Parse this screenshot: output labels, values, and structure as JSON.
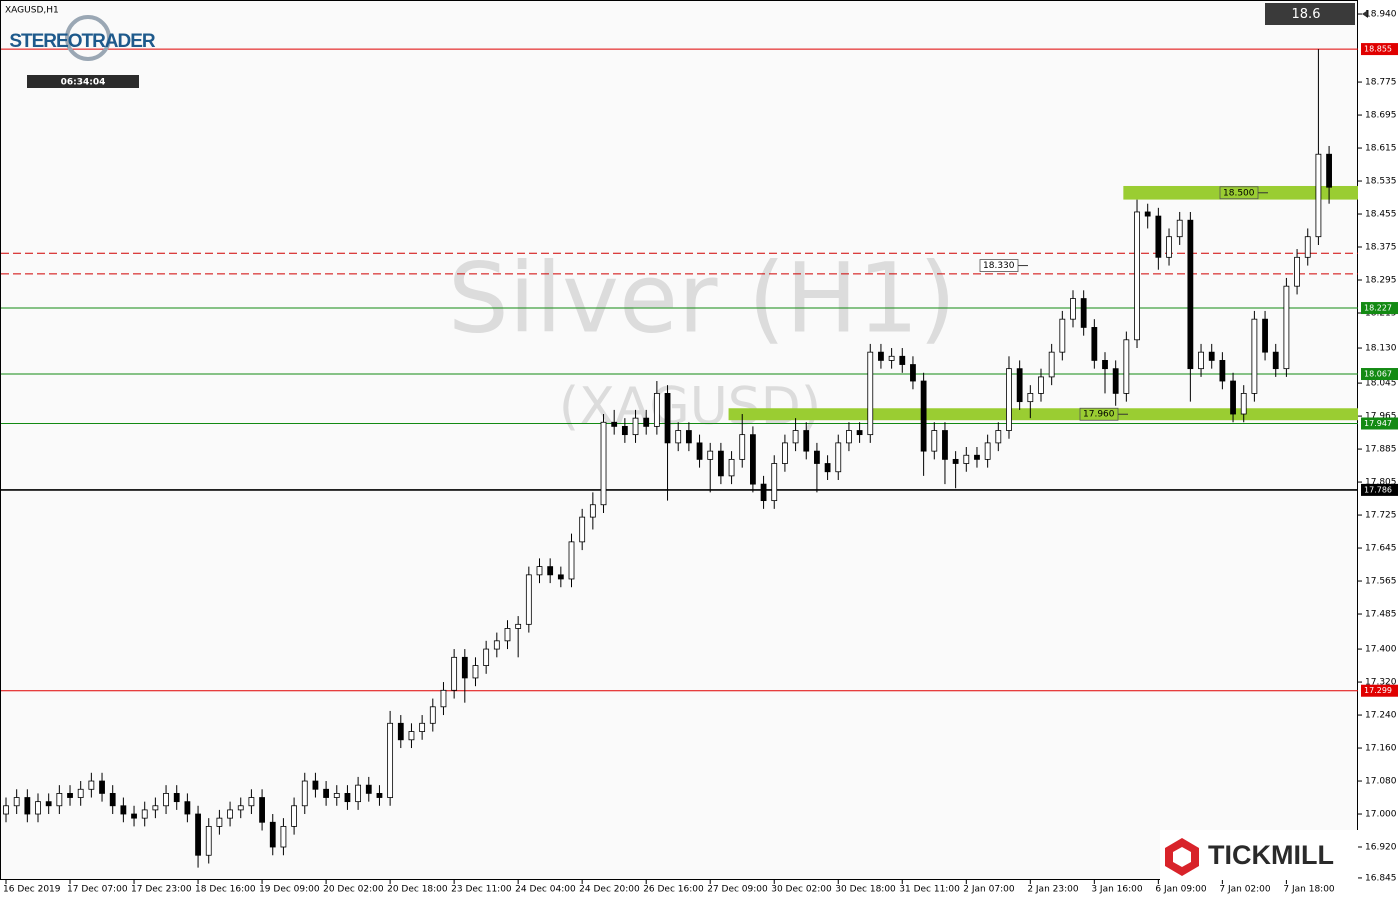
{
  "chart_data": {
    "type": "candlestick",
    "symbol": "XAGUSD,H1",
    "watermark": [
      "Silver (H1)",
      "(XAGUSD)"
    ],
    "brand": "STEREOTRADER",
    "timer": "06:34:04",
    "broker": "TICKMILL",
    "current_price": 18.6,
    "grid": false,
    "up_color": "#ffffff",
    "down_color": "#000000",
    "categories": [
      "16 Dec 2019",
      null,
      null,
      null,
      null,
      null,
      "17 Dec 07:00",
      null,
      null,
      null,
      null,
      null,
      "17 Dec 23:00",
      null,
      null,
      null,
      null,
      null,
      "18 Dec 16:00",
      null,
      null,
      null,
      null,
      null,
      "19 Dec 09:00",
      null,
      null,
      null,
      null,
      null,
      "20 Dec 02:00",
      null,
      null,
      null,
      null,
      null,
      "20 Dec 18:00",
      null,
      null,
      null,
      null,
      null,
      "23 Dec 11:00",
      null,
      null,
      null,
      null,
      null,
      "24 Dec 04:00",
      null,
      null,
      null,
      null,
      null,
      "24 Dec 20:00",
      null,
      null,
      null,
      null,
      null,
      "26 Dec 16:00",
      null,
      null,
      null,
      null,
      null,
      "27 Dec 09:00",
      null,
      null,
      null,
      null,
      null,
      "30 Dec 02:00",
      null,
      null,
      null,
      null,
      null,
      "30 Dec 18:00",
      null,
      null,
      null,
      null,
      null,
      "31 Dec 11:00",
      null,
      null,
      null,
      null,
      null,
      "2 Jan 07:00",
      null,
      null,
      null,
      null,
      null,
      "2 Jan 23:00",
      null,
      null,
      null,
      null,
      null,
      "3 Jan 16:00",
      null,
      null,
      null,
      null,
      null,
      "6 Jan 09:00",
      null,
      null,
      null,
      null,
      null,
      "7 Jan 02:00",
      null,
      null,
      null,
      null,
      null,
      "7 Jan 18:00",
      null,
      null,
      null,
      null
    ],
    "open": [
      17.0,
      17.02,
      17.04,
      17.0,
      17.03,
      17.02,
      17.05,
      17.04,
      17.06,
      17.08,
      17.05,
      17.02,
      17.0,
      16.99,
      17.01,
      17.02,
      17.05,
      17.03,
      17.0,
      16.9,
      16.97,
      16.99,
      17.01,
      17.02,
      17.04,
      16.98,
      16.92,
      16.97,
      17.02,
      17.08,
      17.06,
      17.04,
      17.05,
      17.03,
      17.07,
      17.05,
      17.04,
      17.22,
      17.18,
      17.2,
      17.22,
      17.26,
      17.3,
      17.38,
      17.33,
      17.36,
      17.4,
      17.42,
      17.45,
      17.46,
      17.58,
      17.6,
      17.58,
      17.57,
      17.66,
      17.72,
      17.75,
      17.95,
      17.94,
      17.92,
      17.96,
      17.94,
      18.02,
      17.9,
      17.93,
      17.9,
      17.86,
      17.88,
      17.82,
      17.86,
      17.92,
      17.8,
      17.76,
      17.85,
      17.9,
      17.93,
      17.88,
      17.85,
      17.83,
      17.9,
      17.93,
      17.92,
      18.12,
      18.1,
      18.11,
      18.09,
      18.05,
      17.88,
      17.93,
      17.86,
      17.85,
      17.87,
      17.86,
      17.9,
      17.93,
      18.08,
      18.0,
      18.02,
      18.06,
      18.12,
      18.2,
      18.25,
      18.18,
      18.1,
      18.08,
      18.02,
      18.15,
      18.46,
      18.45,
      18.35,
      18.4,
      18.44,
      18.08,
      18.12,
      18.1,
      18.05,
      17.97,
      18.02,
      18.2,
      18.12,
      18.08,
      18.28,
      18.35,
      18.4,
      18.6
    ],
    "high": [
      17.04,
      17.06,
      17.06,
      17.05,
      17.05,
      17.07,
      17.07,
      17.08,
      17.1,
      17.1,
      17.07,
      17.04,
      17.02,
      17.03,
      17.04,
      17.07,
      17.07,
      17.05,
      17.02,
      16.99,
      17.01,
      17.03,
      17.04,
      17.06,
      17.06,
      17.0,
      16.99,
      17.04,
      17.1,
      17.1,
      17.08,
      17.07,
      17.07,
      17.09,
      17.09,
      17.07,
      17.25,
      17.24,
      17.22,
      17.24,
      17.28,
      17.32,
      17.4,
      17.4,
      17.38,
      17.42,
      17.44,
      17.47,
      17.48,
      17.6,
      17.62,
      17.62,
      17.6,
      17.68,
      17.74,
      17.78,
      17.97,
      17.98,
      17.96,
      17.98,
      17.98,
      18.05,
      18.04,
      17.95,
      17.95,
      17.92,
      17.9,
      17.9,
      17.88,
      17.97,
      17.94,
      17.82,
      17.87,
      17.92,
      17.96,
      17.95,
      17.9,
      17.87,
      17.92,
      17.95,
      17.95,
      18.14,
      18.14,
      18.13,
      18.13,
      18.11,
      18.07,
      17.95,
      17.95,
      17.88,
      17.89,
      17.89,
      17.92,
      17.95,
      18.11,
      18.1,
      18.04,
      18.08,
      18.14,
      18.22,
      18.27,
      18.27,
      18.2,
      18.12,
      18.1,
      18.17,
      18.49,
      18.48,
      18.47,
      18.42,
      18.46,
      18.46,
      18.14,
      18.14,
      18.12,
      18.07,
      18.04,
      18.22,
      18.22,
      18.14,
      18.3,
      18.37,
      18.42,
      18.855,
      18.62
    ],
    "low": [
      16.98,
      17.0,
      16.98,
      16.98,
      17.0,
      17.0,
      17.02,
      17.02,
      17.04,
      17.03,
      17.0,
      16.98,
      16.97,
      16.97,
      16.99,
      17.0,
      17.01,
      16.98,
      16.87,
      16.88,
      16.95,
      16.97,
      16.99,
      17.0,
      16.96,
      16.9,
      16.9,
      16.95,
      17.0,
      17.04,
      17.02,
      17.02,
      17.01,
      17.01,
      17.03,
      17.02,
      17.02,
      17.16,
      17.16,
      17.18,
      17.2,
      17.24,
      17.28,
      17.27,
      17.31,
      17.34,
      17.38,
      17.4,
      17.38,
      17.44,
      17.56,
      17.56,
      17.55,
      17.55,
      17.64,
      17.69,
      17.73,
      17.92,
      17.9,
      17.9,
      17.92,
      17.92,
      17.76,
      17.88,
      17.88,
      17.84,
      17.78,
      17.8,
      17.8,
      17.84,
      17.78,
      17.74,
      17.74,
      17.83,
      17.88,
      17.86,
      17.78,
      17.81,
      17.81,
      17.88,
      17.9,
      17.9,
      18.08,
      18.08,
      18.07,
      18.03,
      17.82,
      17.86,
      17.8,
      17.79,
      17.83,
      17.84,
      17.84,
      17.88,
      17.91,
      17.98,
      17.96,
      18.0,
      18.04,
      18.1,
      18.18,
      18.16,
      18.08,
      18.02,
      17.99,
      18.0,
      18.13,
      18.42,
      18.32,
      18.33,
      18.38,
      18.0,
      18.06,
      18.08,
      18.03,
      17.95,
      17.95,
      18.0,
      18.1,
      18.06,
      18.06,
      18.26,
      18.33,
      18.38,
      18.48
    ],
    "close": [
      17.02,
      17.04,
      17.0,
      17.03,
      17.02,
      17.05,
      17.04,
      17.06,
      17.08,
      17.05,
      17.02,
      17.0,
      16.99,
      17.01,
      17.02,
      17.05,
      17.03,
      17.0,
      16.9,
      16.97,
      16.99,
      17.01,
      17.02,
      17.04,
      16.98,
      16.92,
      16.97,
      17.02,
      17.08,
      17.06,
      17.04,
      17.05,
      17.03,
      17.07,
      17.05,
      17.04,
      17.22,
      17.18,
      17.2,
      17.22,
      17.26,
      17.3,
      17.38,
      17.33,
      17.36,
      17.4,
      17.42,
      17.45,
      17.46,
      17.58,
      17.6,
      17.58,
      17.57,
      17.66,
      17.72,
      17.75,
      17.95,
      17.94,
      17.92,
      17.96,
      17.94,
      18.02,
      17.9,
      17.93,
      17.9,
      17.86,
      17.88,
      17.82,
      17.86,
      17.92,
      17.8,
      17.76,
      17.85,
      17.9,
      17.93,
      17.88,
      17.85,
      17.83,
      17.9,
      17.93,
      17.92,
      18.12,
      18.1,
      18.11,
      18.09,
      18.05,
      17.88,
      17.93,
      17.86,
      17.85,
      17.87,
      17.86,
      17.9,
      17.93,
      18.08,
      18.0,
      18.02,
      18.06,
      18.12,
      18.2,
      18.25,
      18.18,
      18.1,
      18.08,
      18.02,
      18.15,
      18.46,
      18.45,
      18.35,
      18.4,
      18.44,
      18.08,
      18.12,
      18.1,
      18.05,
      17.97,
      18.02,
      18.2,
      18.12,
      18.08,
      18.28,
      18.35,
      18.4,
      18.6,
      18.52
    ],
    "ylim": [
      16.84,
      18.974
    ],
    "yticks": [
      {
        "value": 18.94,
        "label": "18.940"
      },
      {
        "value": 18.775,
        "label": "18.775"
      },
      {
        "value": 18.695,
        "label": "18.695"
      },
      {
        "value": 18.615,
        "label": "18.615"
      },
      {
        "value": 18.535,
        "label": "18.535"
      },
      {
        "value": 18.455,
        "label": "18.455"
      },
      {
        "value": 18.375,
        "label": "18.375"
      },
      {
        "value": 18.295,
        "label": "18.295"
      },
      {
        "value": 18.215,
        "label": "18.215"
      },
      {
        "value": 18.13,
        "label": "18.130"
      },
      {
        "value": 18.045,
        "label": "18.045"
      },
      {
        "value": 17.965,
        "label": "17.965"
      },
      {
        "value": 17.885,
        "label": "17.885"
      },
      {
        "value": 17.805,
        "label": "17.805"
      },
      {
        "value": 17.725,
        "label": "17.725"
      },
      {
        "value": 17.645,
        "label": "17.645"
      },
      {
        "value": 17.565,
        "label": "17.565"
      },
      {
        "value": 17.485,
        "label": "17.485"
      },
      {
        "value": 17.4,
        "label": "17.400"
      },
      {
        "value": 17.32,
        "label": "17.320"
      },
      {
        "value": 17.24,
        "label": "17.240"
      },
      {
        "value": 17.16,
        "label": "17.160"
      },
      {
        "value": 17.08,
        "label": "17.080"
      },
      {
        "value": 17.0,
        "label": "17.000"
      },
      {
        "value": 16.92,
        "label": "16.920"
      },
      {
        "value": 16.845,
        "label": "16.845"
      }
    ],
    "levels": [
      {
        "value": 18.855,
        "color": "#e00000",
        "style": "solid",
        "tagged": true
      },
      {
        "value": 18.36,
        "color": "#d00000",
        "style": "dashed",
        "tagged": false
      },
      {
        "value": 18.31,
        "color": "#d00000",
        "style": "dashed",
        "tagged": false
      },
      {
        "value": 18.227,
        "color": "#138a13",
        "style": "solid",
        "tagged": true
      },
      {
        "value": 18.067,
        "color": "#138a13",
        "style": "solid",
        "tagged": true
      },
      {
        "value": 17.947,
        "color": "#138a13",
        "style": "solid",
        "tagged": true
      },
      {
        "value": 17.786,
        "color": "#000000",
        "style": "solid",
        "tagged": true
      },
      {
        "value": 17.299,
        "color": "#e00000",
        "style": "solid",
        "tagged": true
      }
    ],
    "zones": [
      {
        "label": "18.500",
        "from": 18.49,
        "to": 18.523,
        "start": 105,
        "color": "#9acd32"
      },
      {
        "label": "17.960",
        "from": 17.955,
        "to": 17.984,
        "start": 68,
        "color": "#9acd32"
      }
    ],
    "annotations": [
      {
        "text": "18.330",
        "value": 18.33
      }
    ]
  }
}
